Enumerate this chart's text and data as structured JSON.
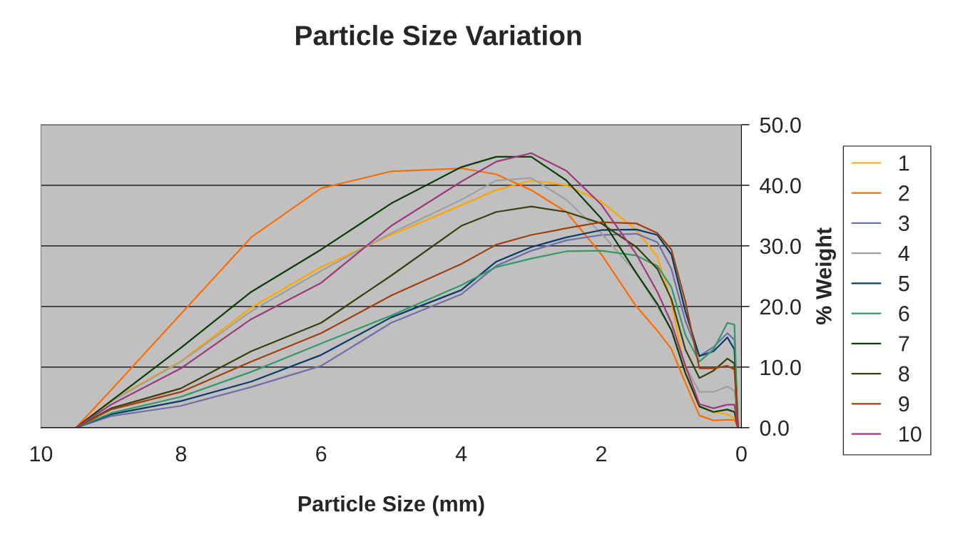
{
  "chart_data": {
    "type": "line",
    "title": "Particle Size Variation",
    "xlabel": "Particle Size (mm)",
    "ylabel": "% Weight",
    "x": [
      9.5,
      9,
      8,
      7,
      6,
      5,
      4,
      3.5,
      3,
      2.5,
      2,
      1.5,
      1.2,
      1,
      0.8,
      0.6,
      0.4,
      0.2,
      0.1,
      0.05
    ],
    "xlim": [
      10,
      0
    ],
    "xticks": [
      10,
      8,
      6,
      4,
      2,
      0
    ],
    "ylim": [
      0,
      50
    ],
    "yticks": [
      {
        "value": 0,
        "label": "0.0"
      },
      {
        "value": 10,
        "label": "10.0"
      },
      {
        "value": 20,
        "label": "20.0"
      },
      {
        "value": 30,
        "label": "30.0"
      },
      {
        "value": 40,
        "label": "40.0"
      },
      {
        "value": 50,
        "label": "50.0"
      }
    ],
    "grid": "y",
    "legend": "right",
    "marker": "none",
    "line_style": "solid",
    "series": [
      {
        "name": "1",
        "color": "#ffa500",
        "values": [
          0,
          4.5,
          11.0,
          19.8,
          26.5,
          31.8,
          36.7,
          39.2,
          40.8,
          40.0,
          37.3,
          32.6,
          28.2,
          20.8,
          9.0,
          3.5,
          2.6,
          2.2,
          1.5,
          0
        ]
      },
      {
        "name": "2",
        "color": "#ff6c00",
        "values": [
          0,
          6.2,
          18.8,
          31.4,
          39.5,
          42.3,
          42.8,
          41.8,
          39.2,
          35.6,
          28.6,
          20.0,
          16.0,
          13.0,
          7.4,
          2.0,
          1.2,
          1.3,
          1.3,
          0
        ]
      },
      {
        "name": "3",
        "color": "#7070a8",
        "values": [
          0,
          1.9,
          3.6,
          6.7,
          10.2,
          17.3,
          22.0,
          26.7,
          29.2,
          30.9,
          31.8,
          32.0,
          30.6,
          26.2,
          17.6,
          11.8,
          13.3,
          15.6,
          14.5,
          0
        ]
      },
      {
        "name": "4",
        "color": "#a0a0a0",
        "values": [
          0,
          4.3,
          10.9,
          19.2,
          25.9,
          32.1,
          37.6,
          40.8,
          41.2,
          37.6,
          32.1,
          25.5,
          20.0,
          16.1,
          10.2,
          5.9,
          5.9,
          6.8,
          6.1,
          0
        ]
      },
      {
        "name": "5",
        "color": "#0a3a6a",
        "values": [
          0,
          2.2,
          4.4,
          7.6,
          12.0,
          18.2,
          22.7,
          27.4,
          29.8,
          31.4,
          32.6,
          32.7,
          31.8,
          28.6,
          19.2,
          11.8,
          12.6,
          14.9,
          12.9,
          0
        ]
      },
      {
        "name": "6",
        "color": "#339966",
        "values": [
          0,
          2.4,
          5.1,
          9.2,
          13.9,
          18.5,
          23.5,
          26.5,
          27.9,
          29.1,
          29.2,
          28.4,
          26.7,
          23.2,
          15.3,
          10.9,
          12.9,
          17.3,
          17.0,
          0
        ]
      },
      {
        "name": "7",
        "color": "#0b3d0b",
        "values": [
          0,
          4.4,
          13.2,
          22.4,
          29.4,
          37.0,
          43.0,
          44.7,
          44.7,
          40.8,
          34.5,
          25.5,
          20.4,
          16.1,
          9.0,
          3.5,
          2.6,
          3.0,
          2.6,
          0
        ]
      },
      {
        "name": "8",
        "color": "#3d3d10",
        "values": [
          0,
          3.2,
          6.5,
          12.6,
          17.3,
          25.1,
          33.3,
          35.6,
          36.5,
          35.6,
          33.7,
          29.8,
          26.2,
          21.2,
          12.9,
          8.2,
          9.4,
          11.4,
          10.6,
          0
        ]
      },
      {
        "name": "9",
        "color": "#a0400a",
        "values": [
          0,
          3.0,
          5.9,
          10.9,
          15.6,
          21.8,
          27.0,
          30.2,
          31.8,
          32.9,
          33.9,
          33.7,
          32.1,
          29.4,
          20.8,
          9.8,
          9.8,
          10.2,
          9.6,
          0
        ]
      },
      {
        "name": "10",
        "color": "#9e3a7a",
        "values": [
          0,
          3.8,
          9.8,
          17.9,
          23.9,
          33.3,
          40.6,
          43.9,
          45.3,
          42.4,
          36.8,
          28.6,
          22.4,
          17.3,
          10.2,
          3.9,
          3.2,
          3.8,
          3.8,
          0
        ]
      }
    ]
  }
}
